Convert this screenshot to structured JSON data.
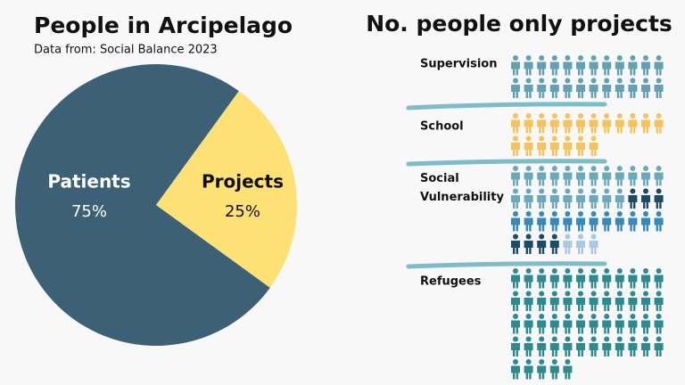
{
  "chart_data": [
    {
      "type": "pie",
      "title": "People in Arcipelago",
      "subtitle": "Data from: Social Balance 2023",
      "categories": [
        "Patients",
        "Projects"
      ],
      "values": [
        75,
        25
      ],
      "value_labels": [
        "75%",
        "25%"
      ],
      "colors": [
        "#3c6075",
        "#fde174"
      ]
    },
    {
      "type": "pictograph",
      "title": "No. people only projects",
      "groups": [
        {
          "label": "Supervision",
          "segments": [
            {
              "color": "#62a0b3",
              "value": 24
            }
          ]
        },
        {
          "label": "School",
          "segments": [
            {
              "color": "#f6c25b",
              "value": 19
            }
          ]
        },
        {
          "label": "Social Vulnerability",
          "segments": [
            {
              "color": "#6aa9bb",
              "value": 21
            },
            {
              "color": "#1d4a66",
              "value": 3
            },
            {
              "color": "#3589bb",
              "value": 12
            },
            {
              "color": "#1d4a66",
              "value": 4
            },
            {
              "color": "#a9c9df",
              "value": 3
            }
          ]
        },
        {
          "label": "Refugees",
          "segments": [
            {
              "color": "#2d8a8f",
              "value": 53
            }
          ]
        }
      ]
    }
  ]
}
